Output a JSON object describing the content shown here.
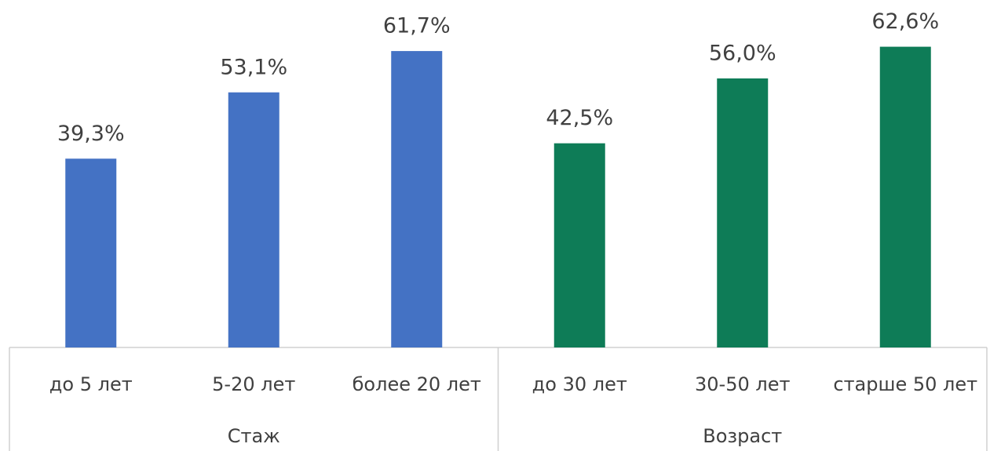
{
  "chart_data": {
    "type": "bar",
    "ylim": [
      0,
      72
    ],
    "groups": [
      {
        "name": "Стаж",
        "color": "#4472c4",
        "categories": [
          "до 5 лет",
          "5-20 лет",
          "более 20 лет"
        ],
        "values": [
          39.3,
          53.1,
          61.7
        ],
        "value_labels": [
          "39,3%",
          "53,1%",
          "61,7%"
        ]
      },
      {
        "name": "Возраст",
        "color": "#0e7c57",
        "categories": [
          "до 30 лет",
          "30-50 лет",
          "старше 50 лет"
        ],
        "values": [
          42.5,
          56.0,
          62.6
        ],
        "value_labels": [
          "42,5%",
          "56,0%",
          "62,6%"
        ]
      }
    ]
  }
}
